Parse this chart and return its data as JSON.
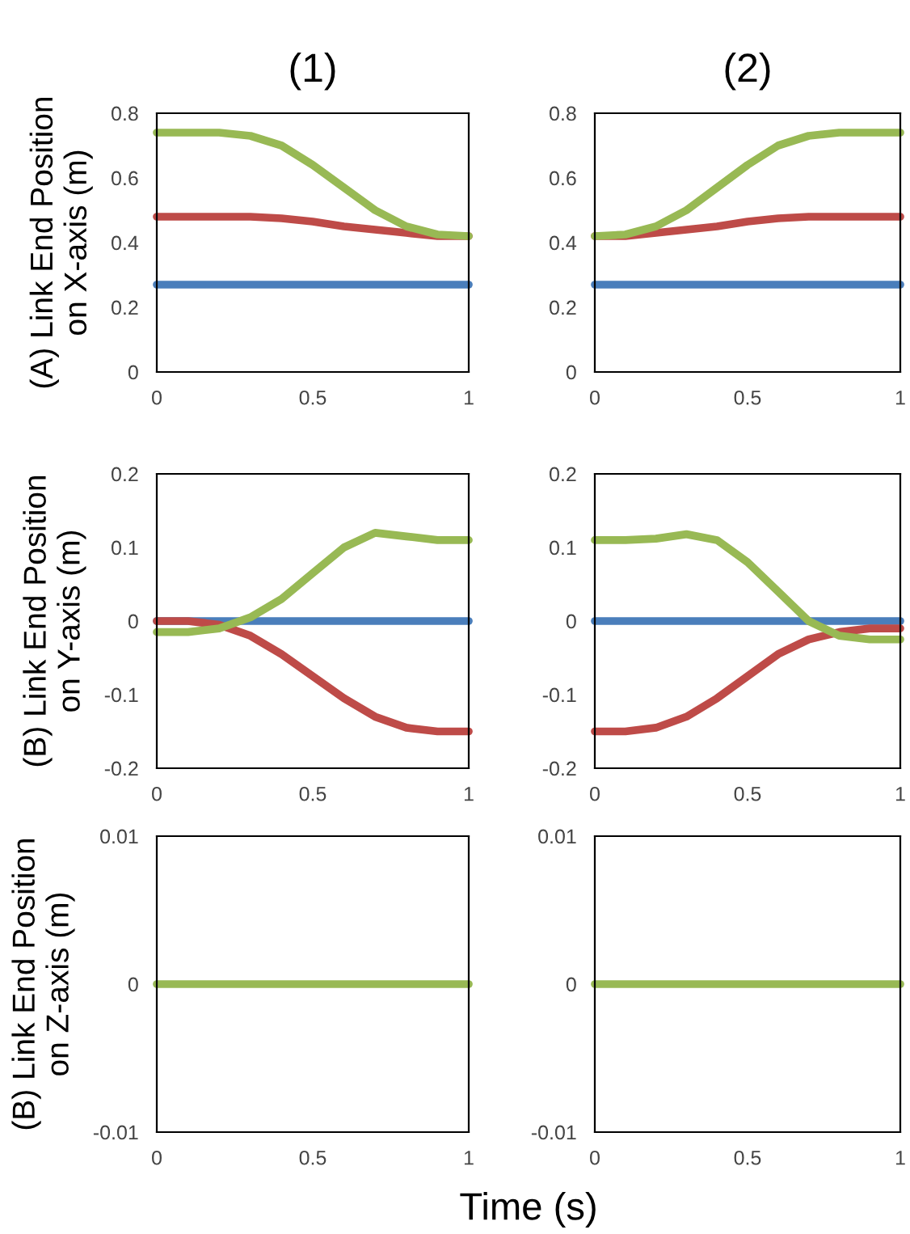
{
  "chart_data": [
    {
      "type": "line",
      "title": "(1)",
      "ylabel": "(A) Link End Position\non X-axis (m)",
      "x": [
        0,
        0.1,
        0.2,
        0.3,
        0.4,
        0.5,
        0.6,
        0.7,
        0.8,
        0.9,
        1
      ],
      "xlim": [
        0,
        1
      ],
      "xticks": [
        0,
        0.5,
        1
      ],
      "ylim": [
        0,
        0.8
      ],
      "yticks": [
        0,
        0.2,
        0.4,
        0.6,
        0.8
      ],
      "grid": false,
      "marker": "none",
      "line_style": "solid",
      "series": [
        {
          "color": "#4a7ebb",
          "values": [
            0.27,
            0.27,
            0.27,
            0.27,
            0.27,
            0.27,
            0.27,
            0.27,
            0.27,
            0.27,
            0.27
          ]
        },
        {
          "color": "#be4b48",
          "values": [
            0.48,
            0.48,
            0.48,
            0.48,
            0.475,
            0.465,
            0.45,
            0.44,
            0.43,
            0.42,
            0.42
          ]
        },
        {
          "color": "#98b954",
          "values": [
            0.74,
            0.74,
            0.74,
            0.73,
            0.7,
            0.64,
            0.57,
            0.5,
            0.45,
            0.425,
            0.42
          ]
        }
      ]
    },
    {
      "type": "line",
      "title": "(2)",
      "x": [
        0,
        0.1,
        0.2,
        0.3,
        0.4,
        0.5,
        0.6,
        0.7,
        0.8,
        0.9,
        1
      ],
      "xlim": [
        0,
        1
      ],
      "xticks": [
        0,
        0.5,
        1
      ],
      "ylim": [
        0,
        0.8
      ],
      "yticks": [
        0,
        0.2,
        0.4,
        0.6,
        0.8
      ],
      "grid": false,
      "marker": "none",
      "line_style": "solid",
      "series": [
        {
          "color": "#4a7ebb",
          "values": [
            0.27,
            0.27,
            0.27,
            0.27,
            0.27,
            0.27,
            0.27,
            0.27,
            0.27,
            0.27,
            0.27
          ]
        },
        {
          "color": "#be4b48",
          "values": [
            0.42,
            0.42,
            0.43,
            0.44,
            0.45,
            0.465,
            0.475,
            0.48,
            0.48,
            0.48,
            0.48
          ]
        },
        {
          "color": "#98b954",
          "values": [
            0.42,
            0.425,
            0.45,
            0.5,
            0.57,
            0.64,
            0.7,
            0.73,
            0.74,
            0.74,
            0.74
          ]
        }
      ]
    },
    {
      "type": "line",
      "ylabel": "(B) Link End Position\non Y-axis (m)",
      "x": [
        0,
        0.1,
        0.2,
        0.3,
        0.4,
        0.5,
        0.6,
        0.7,
        0.8,
        0.9,
        1
      ],
      "xlim": [
        0,
        1
      ],
      "xticks": [
        0,
        0.5,
        1
      ],
      "ylim": [
        -0.2,
        0.2
      ],
      "yticks": [
        -0.2,
        -0.1,
        0,
        0.1,
        0.2
      ],
      "grid": false,
      "marker": "none",
      "line_style": "solid",
      "series": [
        {
          "color": "#4a7ebb",
          "values": [
            0,
            0,
            0,
            0,
            0,
            0,
            0,
            0,
            0,
            0,
            0
          ]
        },
        {
          "color": "#be4b48",
          "values": [
            0,
            0,
            -0.005,
            -0.02,
            -0.045,
            -0.075,
            -0.105,
            -0.13,
            -0.145,
            -0.15,
            -0.15
          ]
        },
        {
          "color": "#98b954",
          "values": [
            -0.015,
            -0.015,
            -0.01,
            0.005,
            0.03,
            0.065,
            0.1,
            0.12,
            0.115,
            0.11,
            0.11
          ]
        }
      ]
    },
    {
      "type": "line",
      "x": [
        0,
        0.1,
        0.2,
        0.3,
        0.4,
        0.5,
        0.6,
        0.7,
        0.8,
        0.9,
        1
      ],
      "xlim": [
        0,
        1
      ],
      "xticks": [
        0,
        0.5,
        1
      ],
      "ylim": [
        -0.2,
        0.2
      ],
      "yticks": [
        -0.2,
        -0.1,
        0,
        0.1,
        0.2
      ],
      "grid": false,
      "marker": "none",
      "line_style": "solid",
      "series": [
        {
          "color": "#4a7ebb",
          "values": [
            0,
            0,
            0,
            0,
            0,
            0,
            0,
            0,
            0,
            0,
            0
          ]
        },
        {
          "color": "#be4b48",
          "values": [
            -0.15,
            -0.15,
            -0.145,
            -0.13,
            -0.105,
            -0.075,
            -0.045,
            -0.025,
            -0.015,
            -0.01,
            -0.01
          ]
        },
        {
          "color": "#98b954",
          "values": [
            0.11,
            0.11,
            0.112,
            0.118,
            0.11,
            0.08,
            0.04,
            0.0,
            -0.02,
            -0.025,
            -0.025
          ]
        }
      ]
    },
    {
      "type": "line",
      "ylabel": "(B) Link End Position\non Z-axis (m)",
      "annotations": [
        "Time (s)"
      ],
      "x": [
        0,
        0.5,
        1
      ],
      "xlim": [
        0,
        1
      ],
      "xticks": [
        0,
        0.5,
        1
      ],
      "ylim": [
        -0.01,
        0.01
      ],
      "yticks": [
        -0.01,
        0,
        0.01
      ],
      "grid": false,
      "marker": "none",
      "line_style": "solid",
      "series": [
        {
          "color": "#98b954",
          "values": [
            0,
            0,
            0
          ]
        }
      ]
    },
    {
      "type": "line",
      "x": [
        0,
        0.5,
        1
      ],
      "xlim": [
        0,
        1
      ],
      "xticks": [
        0,
        0.5,
        1
      ],
      "ylim": [
        -0.01,
        0.01
      ],
      "yticks": [
        -0.01,
        0,
        0.01
      ],
      "grid": false,
      "marker": "none",
      "line_style": "solid",
      "series": [
        {
          "color": "#98b954",
          "values": [
            0,
            0,
            0
          ]
        }
      ]
    }
  ]
}
